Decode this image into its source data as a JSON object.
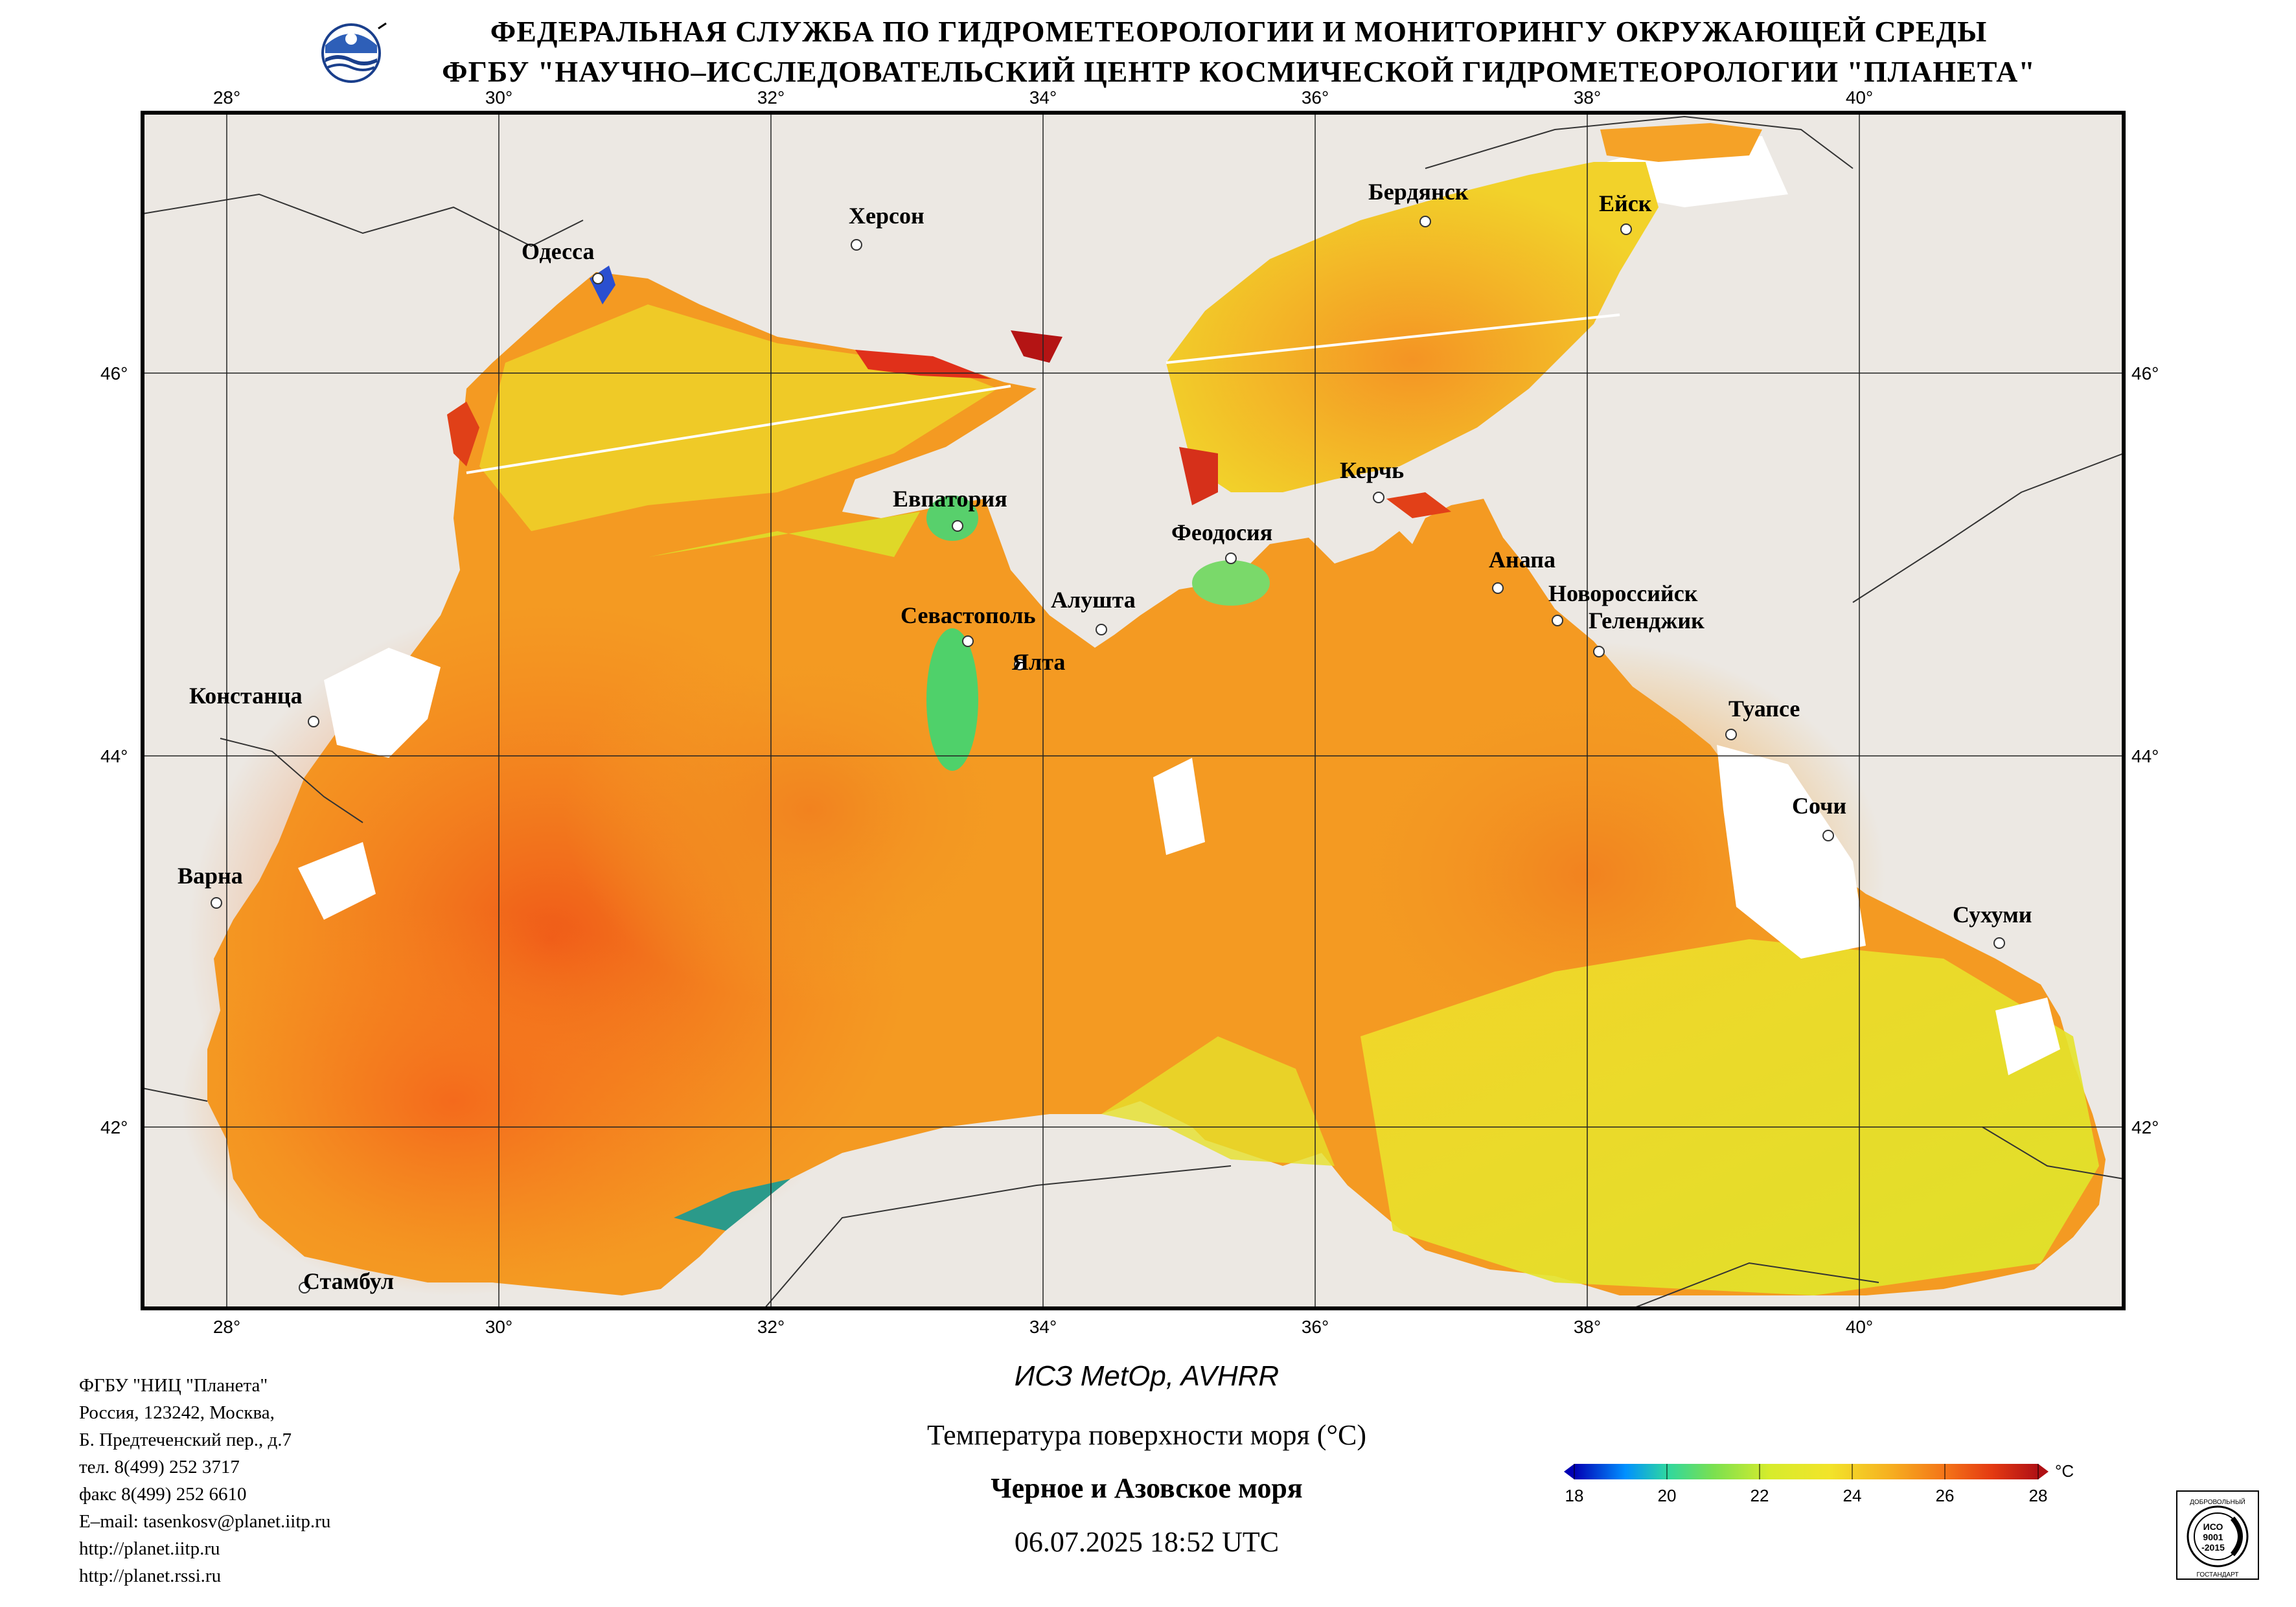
{
  "header": {
    "line1": "ФЕДЕРАЛЬНАЯ СЛУЖБА ПО ГИДРОМЕТЕОРОЛОГИИ И МОНИТОРИНГУ ОКРУЖАЮЩЕЙ СРЕДЫ",
    "line2": "ФГБУ \"НАУЧНО–ИССЛЕДОВАТЕЛЬСКИЙ ЦЕНТР КОСМИЧЕСКОЙ ГИДРОМЕТЕОРОЛОГИИ \"ПЛАНЕТА\""
  },
  "map": {
    "lon_labels": [
      "28°",
      "30°",
      "32°",
      "34°",
      "36°",
      "38°",
      "40°"
    ],
    "lat_labels": [
      "46°",
      "44°",
      "42°"
    ],
    "cities": [
      {
        "name": "Одесса"
      },
      {
        "name": "Херсон"
      },
      {
        "name": "Бердянск"
      },
      {
        "name": "Ейск"
      },
      {
        "name": "Евпатория"
      },
      {
        "name": "Керчь"
      },
      {
        "name": "Феодосия"
      },
      {
        "name": "Анапа"
      },
      {
        "name": "Новороссийск"
      },
      {
        "name": "Геленджик"
      },
      {
        "name": "Севастополь"
      },
      {
        "name": "Алушта"
      },
      {
        "name": "Ялта"
      },
      {
        "name": "Констанца"
      },
      {
        "name": "Туапсе"
      },
      {
        "name": "Сочи"
      },
      {
        "name": "Варна"
      },
      {
        "name": "Сухуми"
      },
      {
        "name": "Стамбул"
      }
    ],
    "colors": {
      "land": "#ece8e3",
      "cloud": "#ffffff",
      "sea_warm": "#f4741e",
      "sea_mid": "#f6a627",
      "sea_cool": "#e9ea26",
      "coastal_cool": "#6ed75c"
    }
  },
  "organization": {
    "name": "ФГБУ \"НИЦ \"Планета\"",
    "address1": "Россия, 123242, Москва,",
    "address2": "Б. Предтеченский пер., д.7",
    "phone": "тел. 8(499) 252 3717",
    "fax": "факс 8(499) 252 6610",
    "email": "E–mail: tasenkosv@planet.iitp.ru",
    "url1": "http://planet.iitp.ru",
    "url2": "http://planet.rssi.ru"
  },
  "caption": {
    "satellite": "ИСЗ MetOp, AVHRR",
    "parameter": "Температура поверхности моря (°С)",
    "region": "Черное и Азовское моря",
    "datetime": "06.07.2025 18:52 UTC"
  },
  "colorbar": {
    "ticks": [
      "18",
      "20",
      "22",
      "24",
      "26",
      "28"
    ],
    "unit": "°С",
    "stops": [
      "#0000b4",
      "#0090ff",
      "#2ed7a0",
      "#7ae050",
      "#d6ec2c",
      "#f2e42a",
      "#f6b020",
      "#f47418",
      "#e43a12",
      "#b01014"
    ]
  },
  "certificate": {
    "top": "ДОБРОВОЛЬНЫЙ",
    "line1": "ИСО",
    "line2": "9001",
    "line3": "-2015",
    "bottom": "ГОСТАНДАРТ"
  }
}
